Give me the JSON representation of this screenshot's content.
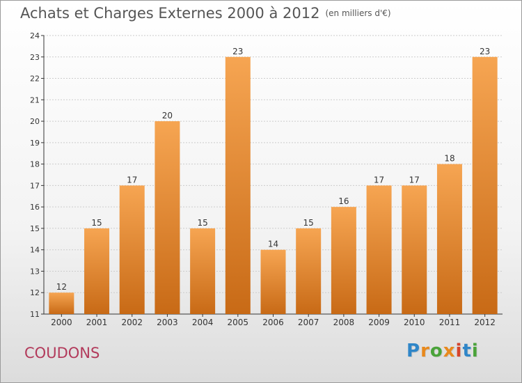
{
  "title": "Achats et Charges Externes 2000 à 2012",
  "unit_note": "(en milliers d'€)",
  "location": "COUDONS",
  "logo": {
    "letters": [
      "P",
      "r",
      "o",
      "x",
      "i",
      "t",
      "i"
    ],
    "colors": [
      "#2f86c8",
      "#e8891d",
      "#4aa33a",
      "#e8891d",
      "#d6442c",
      "#2f86c8",
      "#4aa33a"
    ]
  },
  "colors": {
    "bar_light": "#f6a552",
    "bar_dark": "#c86a16",
    "axis": "#333333",
    "grid": "#cccccc",
    "text": "#333333"
  },
  "chart_data": {
    "type": "bar",
    "categories": [
      "2000",
      "2001",
      "2002",
      "2003",
      "2004",
      "2005",
      "2006",
      "2007",
      "2008",
      "2009",
      "2010",
      "2011",
      "2012"
    ],
    "values": [
      12,
      15,
      17,
      20,
      15,
      23,
      14,
      15,
      16,
      17,
      17,
      18,
      23
    ],
    "ylim": [
      11,
      24
    ],
    "yticks": [
      11,
      12,
      13,
      14,
      15,
      16,
      17,
      18,
      19,
      20,
      21,
      22,
      23,
      24
    ],
    "grid": true
  }
}
